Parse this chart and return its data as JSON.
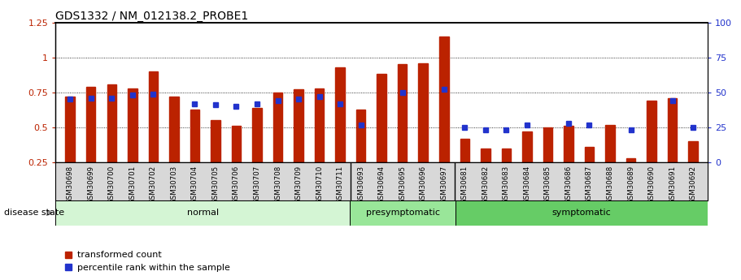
{
  "title": "GDS1332 / NM_012138.2_PROBE1",
  "samples": [
    "GSM30698",
    "GSM30699",
    "GSM30700",
    "GSM30701",
    "GSM30702",
    "GSM30703",
    "GSM30704",
    "GSM30705",
    "GSM30706",
    "GSM30707",
    "GSM30708",
    "GSM30709",
    "GSM30710",
    "GSM30711",
    "GSM30693",
    "GSM30694",
    "GSM30695",
    "GSM30696",
    "GSM30697",
    "GSM30681",
    "GSM30682",
    "GSM30683",
    "GSM30684",
    "GSM30685",
    "GSM30686",
    "GSM30687",
    "GSM30688",
    "GSM30689",
    "GSM30690",
    "GSM30691",
    "GSM30692"
  ],
  "bar_values": [
    0.72,
    0.79,
    0.81,
    0.78,
    0.9,
    0.72,
    0.63,
    0.55,
    0.51,
    0.64,
    0.75,
    0.77,
    0.78,
    0.93,
    0.63,
    0.88,
    0.95,
    0.96,
    1.15,
    0.42,
    0.35,
    0.35,
    0.47,
    0.5,
    0.51,
    0.36,
    0.52,
    0.28,
    0.69,
    0.71,
    0.4
  ],
  "dot_pct": [
    45,
    46,
    46,
    48,
    49,
    null,
    42,
    41,
    40,
    42,
    44,
    45,
    47,
    42,
    27,
    null,
    50,
    null,
    52,
    25,
    23,
    23,
    27,
    null,
    28,
    27,
    null,
    23,
    null,
    44,
    25
  ],
  "groups": [
    {
      "label": "normal",
      "start": 0,
      "end": 13,
      "color": "#d4f5d4"
    },
    {
      "label": "presymptomatic",
      "start": 14,
      "end": 18,
      "color": "#99e699"
    },
    {
      "label": "symptomatic",
      "start": 19,
      "end": 30,
      "color": "#66cc66"
    }
  ],
  "bar_color": "#bb2200",
  "dot_color": "#2233cc",
  "ylim_left": [
    0.25,
    1.25
  ],
  "ylim_right": [
    0,
    100
  ],
  "yticks_left": [
    0.25,
    0.5,
    0.75,
    1.0,
    1.25
  ],
  "yticks_right": [
    0,
    25,
    50,
    75,
    100
  ],
  "gridlines": [
    0.5,
    0.75,
    1.0
  ],
  "legend_labels": [
    "transformed count",
    "percentile rank within the sample"
  ],
  "xlabel_disease": "disease state",
  "bar_width": 0.45
}
